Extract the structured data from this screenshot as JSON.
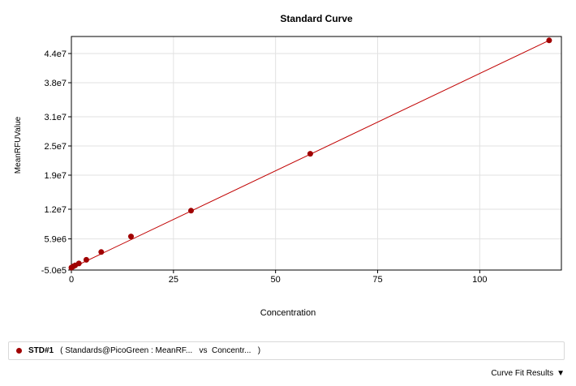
{
  "chart_data": {
    "type": "scatter",
    "title": "Standard Curve",
    "xlabel": "Concentration",
    "ylabel": "MeanRFUValue",
    "xlim": [
      0,
      120
    ],
    "ylim": [
      -500000,
      47500000
    ],
    "x_ticks": [
      0,
      25,
      50,
      75,
      100
    ],
    "x_tick_labels": [
      "0",
      "25",
      "50",
      "75",
      "100"
    ],
    "y_ticks": [
      -500000,
      5900000,
      12000000,
      19000000,
      25000000,
      31000000,
      38000000,
      44000000
    ],
    "y_tick_labels": [
      "-5.0e5",
      "5.9e6",
      "1.2e7",
      "1.9e7",
      "2.5e7",
      "3.1e7",
      "3.8e7",
      "4.4e7"
    ],
    "grid": true,
    "series": [
      {
        "name": "STD#1",
        "color": "#a00000",
        "x": [
          0,
          0.46,
          0.92,
          1.83,
          3.66,
          7.31,
          14.6,
          29.3,
          58.5,
          117
        ],
        "y": [
          0,
          250000,
          450000,
          850000,
          1600000,
          3200000,
          6400000,
          11700000,
          23400000,
          46700000
        ]
      }
    ],
    "fit_line": {
      "x": [
        0,
        117
      ],
      "y": [
        -100000,
        46700000
      ],
      "color": "#c00000"
    }
  },
  "legend": {
    "series_name": "STD#1",
    "series_desc": "( Standards@PicoGreen : MeanRF...   vs  Concentr...   )",
    "dot_color": "#a00000"
  },
  "footer": {
    "curve_fit_label": "Curve Fit Results",
    "arrow_icon": "triangle-down-icon"
  }
}
